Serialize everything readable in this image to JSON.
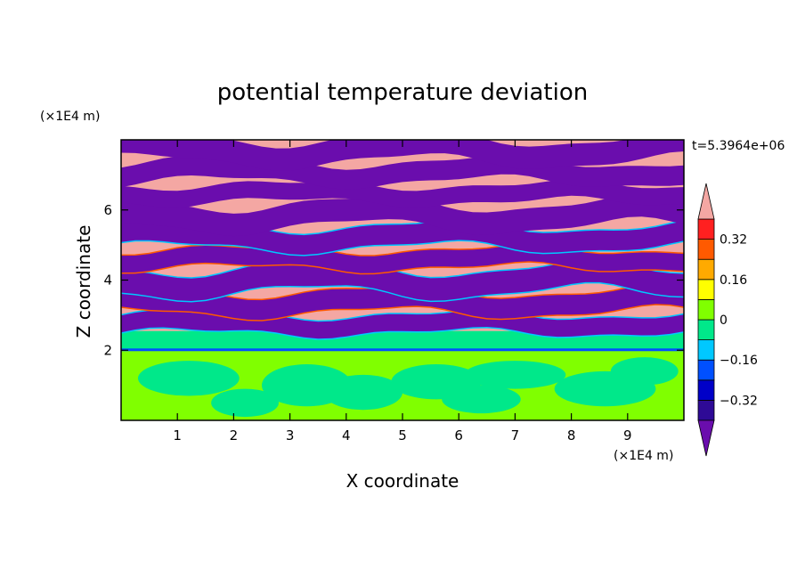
{
  "chart_data": {
    "type": "heatmap",
    "title": "potential temperature deviation",
    "xlabel": "X coordinate",
    "ylabel": "Z coordinate",
    "x_unit": "(×1E4 m)",
    "y_unit": "(×1E4 m)",
    "time_label": "t=5.3964e+06",
    "xlim": [
      0,
      10
    ],
    "ylim": [
      0,
      8
    ],
    "x_ticks": [
      1,
      2,
      3,
      4,
      5,
      6,
      7,
      8,
      9
    ],
    "y_ticks": [
      2,
      4,
      6
    ],
    "colorbar": {
      "levels": [
        -0.4,
        -0.32,
        -0.24,
        -0.16,
        -0.08,
        0,
        0.08,
        0.16,
        0.24,
        0.32,
        0.4
      ],
      "tick_labels": [
        "0.32",
        "0.16",
        "0",
        "−0.16",
        "−0.32"
      ],
      "tick_values": [
        0.32,
        0.16,
        0,
        -0.16,
        -0.32
      ],
      "colors": [
        "#6a0dad",
        "#2e0a96",
        "#0000c8",
        "#0050ff",
        "#00c8ff",
        "#00e88a",
        "#80ff00",
        "#ffff00",
        "#ffaa00",
        "#ff5a00",
        "#ff2020",
        "#f4a7a3"
      ],
      "extend": "both"
    },
    "regions": [
      {
        "z_range": [
          0,
          2
        ],
        "description_values": [
          0,
          0.08
        ]
      },
      {
        "z_range": [
          2,
          8
        ],
        "description_values": [
          -0.4,
          0.4
        ]
      }
    ]
  }
}
